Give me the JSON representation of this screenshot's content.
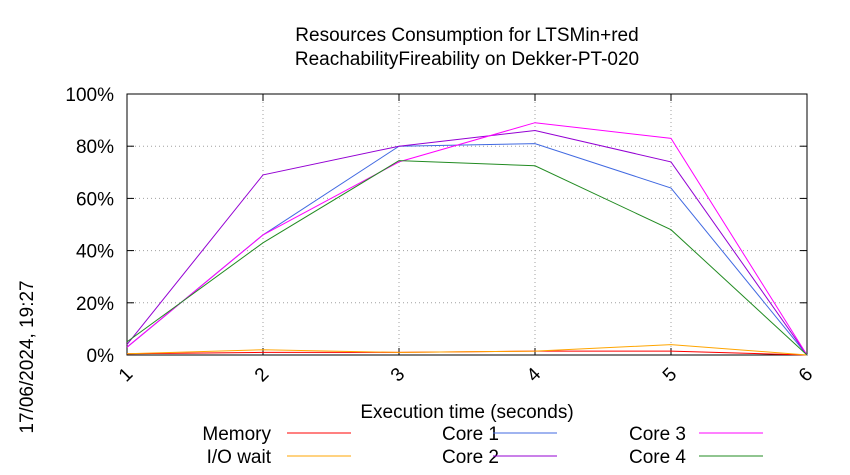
{
  "chart_data": {
    "type": "line",
    "title_lines": [
      "Resources Consumption for LTSMin+red",
      "ReachabilityFireability on Dekker-PT-020"
    ],
    "xlabel": "Execution time (seconds)",
    "ylabel": "",
    "side_label": "17/06/2024, 19:27",
    "x": [
      1,
      2,
      3,
      4,
      5,
      6
    ],
    "x_ticks": [
      "1",
      "2",
      "3",
      "4",
      "5",
      "6"
    ],
    "xlim": [
      1,
      6
    ],
    "ylim": [
      0,
      100
    ],
    "y_ticks": [
      "0%",
      "20%",
      "40%",
      "60%",
      "80%",
      "100%"
    ],
    "y_tick_values": [
      0,
      20,
      40,
      60,
      80,
      100
    ],
    "grid": true,
    "legend_placement": "bottom",
    "series": [
      {
        "name": "Memory",
        "color": "#ff0000",
        "values": [
          0.5,
          1,
          1,
          1.5,
          1.5,
          0
        ]
      },
      {
        "name": "I/O wait",
        "color": "#ffa500",
        "values": [
          0.5,
          2,
          1,
          1.5,
          4,
          0
        ]
      },
      {
        "name": "Core 1",
        "color": "#4169e1",
        "values": [
          3,
          46,
          80,
          81,
          64,
          0
        ]
      },
      {
        "name": "Core 2",
        "color": "#9400d3",
        "values": [
          4,
          69,
          80,
          86,
          74,
          0
        ]
      },
      {
        "name": "Core 3",
        "color": "#ff00ff",
        "values": [
          3,
          46,
          74,
          89,
          83,
          0
        ]
      },
      {
        "name": "Core 4",
        "color": "#228b22",
        "values": [
          5,
          43,
          74.5,
          72.5,
          48,
          0
        ]
      }
    ]
  }
}
